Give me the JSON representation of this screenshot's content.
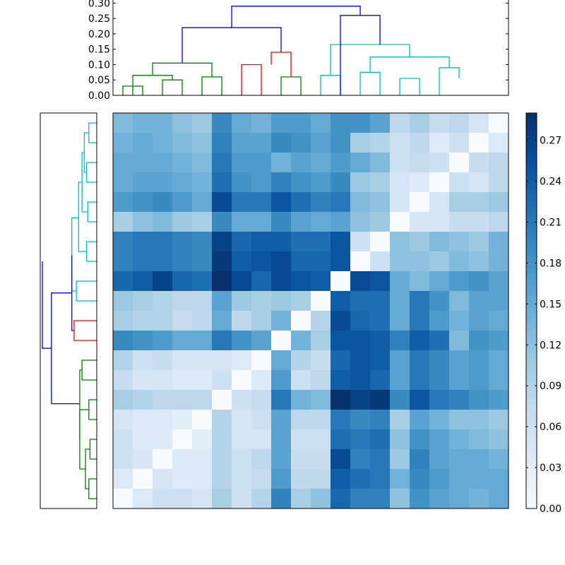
{
  "chart_data": [
    {
      "type": "dendrogram",
      "orientation": "top",
      "yticks": [
        "0.00",
        "0.05",
        "0.10",
        "0.15",
        "0.20",
        "0.25",
        "0.30"
      ],
      "ylim": [
        0,
        0.31
      ],
      "xlim": [
        0,
        200
      ],
      "segments": [
        {
          "x": [
            5,
            5,
            15,
            15
          ],
          "y": [
            0,
            0.03,
            0.03,
            0
          ],
          "color": "#008000"
        },
        {
          "x": [
            25,
            25,
            35,
            35
          ],
          "y": [
            0,
            0.05,
            0.05,
            0
          ],
          "color": "#008000"
        },
        {
          "x": [
            10,
            10,
            30,
            30
          ],
          "y": [
            0,
            0.065,
            0.065,
            0.05
          ],
          "color": "#008000"
        },
        {
          "x": [
            45,
            45,
            55,
            55
          ],
          "y": [
            0,
            0.06,
            0.06,
            0
          ],
          "color": "#008000"
        },
        {
          "x": [
            20,
            20,
            50,
            50
          ],
          "y": [
            0.065,
            0.105,
            0.105,
            0.06
          ],
          "color": "#008000"
        },
        {
          "x": [
            65,
            65,
            75,
            75
          ],
          "y": [
            0,
            0.1,
            0.1,
            0
          ],
          "color": "#ff0000"
        },
        {
          "x": [
            85,
            85,
            95,
            95
          ],
          "y": [
            0,
            0.06,
            0.06,
            0
          ],
          "color": "#008000"
        },
        {
          "x": [
            80,
            80,
            90,
            90
          ],
          "y": [
            0.1,
            0.14,
            0.14,
            0.06
          ],
          "color": "#ff0000"
        },
        {
          "x": [
            105,
            105,
            115,
            115
          ],
          "y": [
            0,
            0.065,
            0.065,
            0
          ],
          "color": "#00bfbf"
        },
        {
          "x": [
            125,
            125,
            135,
            135
          ],
          "y": [
            0,
            0.075,
            0.075,
            0
          ],
          "color": "#00bfbf"
        },
        {
          "x": [
            145,
            145,
            155,
            155
          ],
          "y": [
            0,
            0.055,
            0.055,
            0
          ],
          "color": "#00bfbf"
        },
        {
          "x": [
            165,
            165,
            175,
            175
          ],
          "y": [
            0,
            0.09,
            0.09,
            0.055
          ],
          "color": "#00bfbf"
        },
        {
          "x": [
            130,
            130,
            170,
            170
          ],
          "y": [
            0.075,
            0.125,
            0.125,
            0.09
          ],
          "color": "#00bfbf"
        },
        {
          "x": [
            110,
            110,
            150,
            150
          ],
          "y": [
            0.065,
            0.165,
            0.165,
            0.125
          ],
          "color": "#00bfbf"
        },
        {
          "x": [
            35,
            35,
            85,
            85
          ],
          "y": [
            0.105,
            0.22,
            0.22,
            0.14
          ],
          "color": "#0000ff"
        },
        {
          "x": [
            115,
            115,
            135,
            135
          ],
          "y": [
            0,
            0.26,
            0.26,
            0.165
          ],
          "color": "#0000ff"
        },
        {
          "x": [
            60,
            60,
            125,
            125
          ],
          "y": [
            0.22,
            0.29,
            0.29,
            0.26
          ],
          "color": "#0000ff"
        }
      ]
    },
    {
      "type": "dendrogram",
      "orientation": "left",
      "segments": [
        {
          "y": [
            5,
            5,
            15,
            15
          ],
          "x": [
            0,
            0.035,
            0.035,
            0
          ],
          "color": "#008000"
        },
        {
          "y": [
            25,
            25,
            35,
            35
          ],
          "x": [
            0,
            0.03,
            0.03,
            0
          ],
          "color": "#008000"
        },
        {
          "y": [
            10,
            10,
            30,
            30
          ],
          "x": [
            0.035,
            0.05,
            0.05,
            0.03
          ],
          "color": "#008000"
        },
        {
          "y": [
            45,
            45,
            55,
            55
          ],
          "x": [
            0,
            0.035,
            0.035,
            0
          ],
          "color": "#008000"
        },
        {
          "y": [
            20,
            20,
            50,
            50
          ],
          "x": [
            0.05,
            0.075,
            0.075,
            0.035
          ],
          "color": "#008000"
        },
        {
          "y": [
            65,
            65,
            75,
            75
          ],
          "x": [
            0,
            0.065,
            0.065,
            0
          ],
          "color": "#008000"
        },
        {
          "y": [
            35,
            35,
            70,
            70
          ],
          "x": [
            0.075,
            0.075,
            0.075,
            0.065
          ],
          "color": "#008000"
        },
        {
          "y": [
            85,
            85,
            95,
            95
          ],
          "x": [
            0,
            0.1,
            0.1,
            0
          ],
          "color": "#ff0000"
        },
        {
          "y": [
            105,
            105,
            115,
            115
          ],
          "x": [
            0,
            0.09,
            0.09,
            0
          ],
          "color": "#00bfbf"
        },
        {
          "y": [
            125,
            125,
            135,
            135
          ],
          "x": [
            0,
            0.045,
            0.045,
            0
          ],
          "color": "#00bfbf"
        },
        {
          "y": [
            145,
            145,
            155,
            155
          ],
          "x": [
            0,
            0.04,
            0.04,
            0
          ],
          "color": "#00bfbf"
        },
        {
          "y": [
            165,
            165,
            175,
            175
          ],
          "x": [
            0,
            0.045,
            0.045,
            0
          ],
          "color": "#00bfbf"
        },
        {
          "y": [
            185,
            185,
            195,
            195
          ],
          "x": [
            0,
            0.035,
            0.035,
            0
          ],
          "color": "#00bfbf"
        },
        {
          "y": [
            170,
            170,
            190,
            190
          ],
          "x": [
            0.045,
            0.055,
            0.055,
            0.035
          ],
          "color": "#00bfbf"
        },
        {
          "y": [
            150,
            150,
            180,
            180
          ],
          "x": [
            0.04,
            0.065,
            0.065,
            0.055
          ],
          "color": "#00bfbf"
        },
        {
          "y": [
            130,
            130,
            165,
            165
          ],
          "x": [
            0.045,
            0.08,
            0.08,
            0.065
          ],
          "color": "#00bfbf"
        },
        {
          "y": [
            110,
            110,
            147,
            147
          ],
          "x": [
            0.09,
            0.11,
            0.11,
            0.08
          ],
          "color": "#00bfbf"
        },
        {
          "y": [
            90,
            90,
            128,
            128
          ],
          "x": [
            0.1,
            0.11,
            0.11,
            0.11
          ],
          "color": "#0000ff"
        },
        {
          "y": [
            53,
            53,
            109,
            109
          ],
          "x": [
            0.075,
            0.2,
            0.2,
            0.11
          ],
          "color": "#0000ff"
        },
        {
          "y": [
            81,
            81,
            125,
            125
          ],
          "x": [
            0.2,
            0.24,
            0.24,
            0.24
          ],
          "color": "#0000ff"
        }
      ]
    },
    {
      "type": "heatmap",
      "rows": 20,
      "cols": 20,
      "vmin": 0,
      "vmax": 0.29,
      "colormap": "Blues",
      "colorbar_ticks": [
        "0.00",
        "0.03",
        "0.06",
        "0.09",
        "0.12",
        "0.15",
        "0.18",
        "0.21",
        "0.24",
        "0.27"
      ],
      "values": [
        [
          0.13,
          0.14,
          0.14,
          0.12,
          0.11,
          0.19,
          0.15,
          0.14,
          0.17,
          0.17,
          0.15,
          0.18,
          0.18,
          0.16,
          0.08,
          0.1,
          0.07,
          0.08,
          0.05,
          0.0
        ],
        [
          0.14,
          0.15,
          0.14,
          0.13,
          0.12,
          0.2,
          0.16,
          0.16,
          0.19,
          0.18,
          0.16,
          0.18,
          0.1,
          0.09,
          0.06,
          0.08,
          0.04,
          0.06,
          0.0,
          0.04
        ],
        [
          0.15,
          0.15,
          0.15,
          0.14,
          0.13,
          0.21,
          0.17,
          0.17,
          0.14,
          0.16,
          0.15,
          0.17,
          0.15,
          0.13,
          0.06,
          0.07,
          0.06,
          0.0,
          0.07,
          0.08
        ],
        [
          0.15,
          0.16,
          0.16,
          0.15,
          0.14,
          0.22,
          0.18,
          0.17,
          0.2,
          0.18,
          0.17,
          0.19,
          0.11,
          0.1,
          0.05,
          0.04,
          0.0,
          0.06,
          0.05,
          0.08
        ],
        [
          0.17,
          0.18,
          0.19,
          0.17,
          0.15,
          0.26,
          0.21,
          0.21,
          0.25,
          0.22,
          0.2,
          0.21,
          0.13,
          0.12,
          0.05,
          0.0,
          0.05,
          0.1,
          0.1,
          0.11
        ],
        [
          0.1,
          0.12,
          0.13,
          0.11,
          0.1,
          0.19,
          0.15,
          0.15,
          0.19,
          0.16,
          0.15,
          0.16,
          0.12,
          0.11,
          0.0,
          0.05,
          0.05,
          0.07,
          0.07,
          0.08
        ],
        [
          0.2,
          0.21,
          0.21,
          0.2,
          0.19,
          0.27,
          0.23,
          0.24,
          0.24,
          0.22,
          0.22,
          0.25,
          0.06,
          0.0,
          0.12,
          0.11,
          0.13,
          0.12,
          0.11,
          0.14
        ],
        [
          0.2,
          0.21,
          0.21,
          0.2,
          0.19,
          0.28,
          0.24,
          0.25,
          0.26,
          0.23,
          0.23,
          0.25,
          0.0,
          0.06,
          0.12,
          0.12,
          0.11,
          0.13,
          0.12,
          0.14
        ],
        [
          0.23,
          0.24,
          0.27,
          0.23,
          0.22,
          0.29,
          0.26,
          0.23,
          0.26,
          0.25,
          0.24,
          0.0,
          0.26,
          0.25,
          0.15,
          0.13,
          0.15,
          0.17,
          0.18,
          0.16
        ],
        [
          0.11,
          0.1,
          0.09,
          0.08,
          0.08,
          0.16,
          0.11,
          0.1,
          0.11,
          0.1,
          0.0,
          0.24,
          0.22,
          0.22,
          0.15,
          0.21,
          0.18,
          0.13,
          0.16,
          0.16
        ],
        [
          0.1,
          0.09,
          0.09,
          0.07,
          0.08,
          0.15,
          0.08,
          0.1,
          0.14,
          0.0,
          0.09,
          0.26,
          0.23,
          0.22,
          0.15,
          0.21,
          0.17,
          0.14,
          0.16,
          0.15
        ],
        [
          0.19,
          0.18,
          0.17,
          0.15,
          0.15,
          0.21,
          0.18,
          0.16,
          0.0,
          0.14,
          0.1,
          0.25,
          0.25,
          0.24,
          0.2,
          0.24,
          0.22,
          0.13,
          0.18,
          0.17
        ],
        [
          0.09,
          0.06,
          0.07,
          0.05,
          0.05,
          0.05,
          0.04,
          0.0,
          0.15,
          0.09,
          0.07,
          0.23,
          0.25,
          0.24,
          0.16,
          0.21,
          0.19,
          0.16,
          0.17,
          0.15
        ],
        [
          0.07,
          0.05,
          0.05,
          0.04,
          0.04,
          0.06,
          0.0,
          0.04,
          0.17,
          0.06,
          0.08,
          0.24,
          0.25,
          0.23,
          0.16,
          0.21,
          0.19,
          0.16,
          0.17,
          0.15
        ],
        [
          0.1,
          0.09,
          0.08,
          0.08,
          0.08,
          0.0,
          0.06,
          0.07,
          0.21,
          0.14,
          0.13,
          0.29,
          0.27,
          0.28,
          0.19,
          0.25,
          0.21,
          0.2,
          0.18,
          0.17
        ],
        [
          0.05,
          0.04,
          0.04,
          0.03,
          0.0,
          0.09,
          0.05,
          0.06,
          0.16,
          0.08,
          0.08,
          0.21,
          0.19,
          0.2,
          0.1,
          0.16,
          0.14,
          0.12,
          0.12,
          0.11
        ],
        [
          0.06,
          0.04,
          0.04,
          0.0,
          0.03,
          0.09,
          0.05,
          0.05,
          0.16,
          0.06,
          0.06,
          0.22,
          0.21,
          0.22,
          0.12,
          0.18,
          0.16,
          0.14,
          0.13,
          0.12
        ],
        [
          0.06,
          0.05,
          0.0,
          0.04,
          0.04,
          0.09,
          0.06,
          0.08,
          0.16,
          0.07,
          0.07,
          0.26,
          0.2,
          0.21,
          0.11,
          0.2,
          0.16,
          0.15,
          0.15,
          0.14
        ],
        [
          0.04,
          0.0,
          0.05,
          0.04,
          0.04,
          0.09,
          0.06,
          0.07,
          0.17,
          0.08,
          0.08,
          0.24,
          0.22,
          0.21,
          0.14,
          0.19,
          0.17,
          0.15,
          0.15,
          0.15
        ],
        [
          0.0,
          0.04,
          0.06,
          0.06,
          0.05,
          0.1,
          0.06,
          0.09,
          0.2,
          0.1,
          0.12,
          0.23,
          0.2,
          0.2,
          0.12,
          0.18,
          0.16,
          0.15,
          0.14,
          0.15
        ]
      ]
    }
  ]
}
